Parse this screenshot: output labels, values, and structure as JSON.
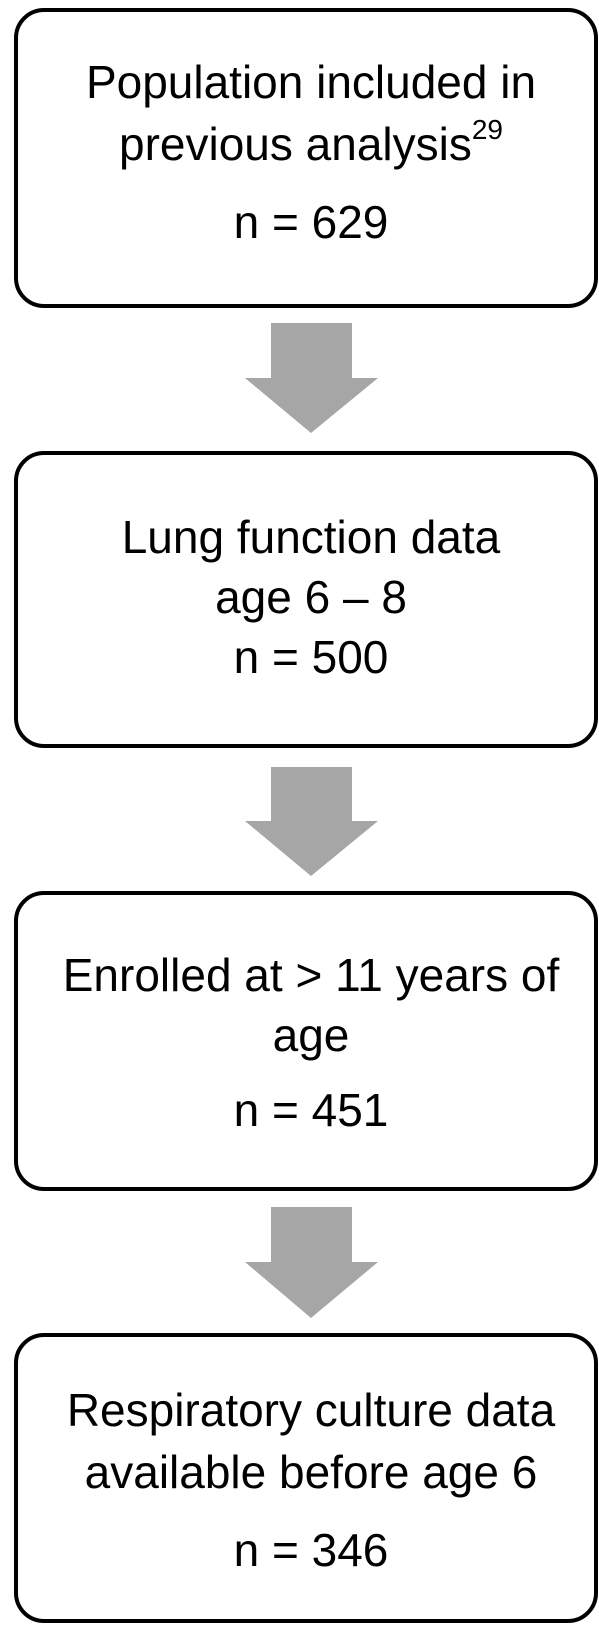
{
  "nodes": [
    {
      "lines": [
        "Population included in",
        "previous analysis"
      ],
      "superscript": "29",
      "count": "n = 629"
    },
    {
      "lines": [
        "Lung function data",
        "age 6 – 8"
      ],
      "count": "n = 500"
    },
    {
      "lines": [
        "Enrolled at > 11 years of",
        "age"
      ],
      "count": "n = 451"
    },
    {
      "lines": [
        "Respiratory culture data",
        "available before age 6"
      ],
      "count": "n = 346"
    }
  ]
}
